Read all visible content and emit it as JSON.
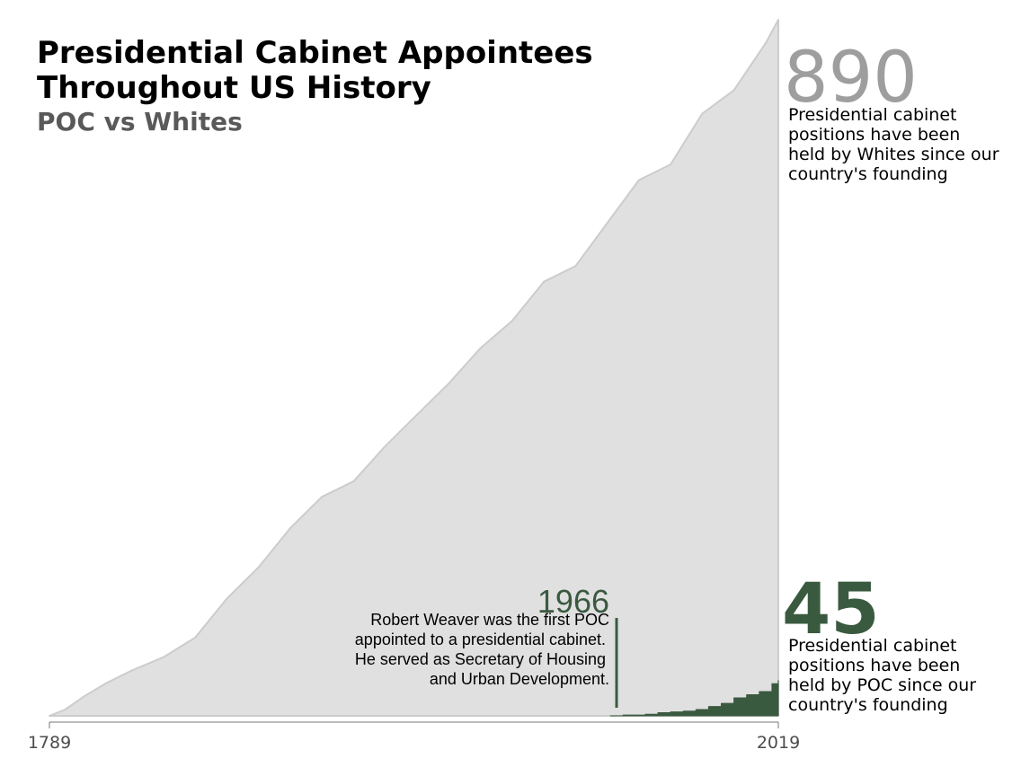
{
  "header": {
    "title_line1": "Presidential Cabinet Appointees",
    "title_line2": "Throughout US History",
    "subtitle": "POC vs Whites"
  },
  "totals": {
    "whites": {
      "value": "890",
      "description": [
        "Presidential cabinet",
        "positions have been",
        "held by Whites since our",
        "country's founding"
      ]
    },
    "poc": {
      "value": "45",
      "description": [
        "Presidential cabinet",
        "positions have been",
        "held by POC since our",
        "country's founding"
      ]
    }
  },
  "annotation": {
    "year": "1966",
    "text": [
      "Robert Weaver was the first POC",
      "appointed to a presidential cabinet.",
      "He served as Secretary of Housing",
      "and Urban Development."
    ]
  },
  "colors": {
    "whites_area": "#e0e0e0",
    "whites_line": "#cccccc",
    "poc_area": "#3a5a40",
    "axis": "#777777"
  },
  "chart_data": {
    "type": "area",
    "xlim": [
      1789,
      2019
    ],
    "ylim": [
      0,
      890
    ],
    "x_ticks": [
      "1789",
      "2019"
    ],
    "series": [
      {
        "name": "Whites",
        "x": [
          1789,
          1794,
          1800,
          1807,
          1815,
          1825,
          1835,
          1845,
          1855,
          1865,
          1875,
          1885,
          1895,
          1905,
          1915,
          1925,
          1935,
          1945,
          1955,
          1965,
          1975,
          1985,
          1995,
          2005,
          2015,
          2019
        ],
        "y": [
          0,
          8,
          25,
          42,
          58,
          75,
          100,
          150,
          190,
          240,
          280,
          300,
          345,
          385,
          425,
          470,
          505,
          555,
          575,
          630,
          685,
          705,
          770,
          800,
          860,
          890
        ]
      },
      {
        "name": "POC",
        "x": [
          1966,
          1970,
          1977,
          1981,
          1985,
          1989,
          1993,
          1997,
          2001,
          2005,
          2009,
          2013,
          2017,
          2019
        ],
        "y": [
          0,
          1,
          2,
          4,
          5,
          6,
          8,
          12,
          16,
          23,
          27,
          31,
          41,
          45
        ]
      }
    ]
  }
}
